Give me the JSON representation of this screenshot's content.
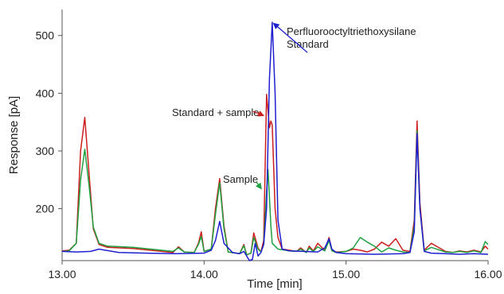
{
  "chart_data": {
    "type": "line",
    "xlabel": "Time [min]",
    "ylabel": "Response [pA]",
    "xlim": [
      13.0,
      16.0
    ],
    "ylim": [
      110,
      545
    ],
    "x_ticks": [
      13.0,
      14.0,
      15.0,
      16.0
    ],
    "x_tick_labels": [
      "13.00",
      "14.00",
      "15.00",
      "16.00"
    ],
    "y_ticks": [
      200,
      300,
      400,
      500
    ],
    "y_tick_labels": [
      "200",
      "300",
      "400",
      "500"
    ],
    "grid": false,
    "legend": "none",
    "annotations": [
      {
        "id": "standard",
        "lines": [
          "Perfluorooctyltriethoxysilane",
          "Standard"
        ],
        "points_to": [
          14.48,
          523
        ],
        "arrow_color": "#1f1fd0"
      },
      {
        "id": "standard-sample",
        "lines": [
          "Standard + sample"
        ],
        "points_to": [
          14.43,
          360
        ],
        "arrow_color": "#cc1f1f"
      },
      {
        "id": "sample",
        "lines": [
          "Sample"
        ],
        "points_to": [
          14.41,
          232
        ],
        "arrow_color": "#20a040"
      }
    ],
    "series": [
      {
        "color": "#cc1f1f",
        "x": [
          13.0,
          13.05,
          13.1,
          13.13,
          13.16,
          13.19,
          13.22,
          13.26,
          13.32,
          13.5,
          13.78,
          13.82,
          13.86,
          13.93,
          13.96,
          13.98,
          14.0,
          14.05,
          14.08,
          14.11,
          14.14,
          14.17,
          14.25,
          14.28,
          14.3,
          14.33,
          14.35,
          14.38,
          14.4,
          14.42,
          14.44,
          14.45,
          14.46,
          14.47,
          14.48,
          14.5,
          14.52,
          14.55,
          14.6,
          14.65,
          14.68,
          14.72,
          14.74,
          14.77,
          14.8,
          14.85,
          14.88,
          14.9,
          14.93,
          15.0,
          15.05,
          15.1,
          15.15,
          15.2,
          15.25,
          15.3,
          15.35,
          15.4,
          15.45,
          15.48,
          15.5,
          15.52,
          15.55,
          15.6,
          15.7,
          15.75,
          15.8,
          15.85,
          15.9,
          15.95,
          15.98,
          16.0
        ],
        "y": [
          127,
          128,
          140,
          300,
          358,
          260,
          165,
          138,
          133,
          131,
          124,
          134,
          125,
          124,
          140,
          160,
          126,
          130,
          200,
          252,
          170,
          125,
          122,
          138,
          120,
          123,
          158,
          132,
          125,
          145,
          398,
          370,
          340,
          352,
          345,
          200,
          150,
          130,
          128,
          126,
          132,
          124,
          135,
          127,
          140,
          128,
          150,
          128,
          125,
          126,
          130,
          128,
          125,
          130,
          142,
          135,
          148,
          128,
          126,
          180,
          352,
          210,
          128,
          140,
          126,
          124,
          127,
          125,
          128,
          125,
          135,
          130
        ]
      },
      {
        "color": "#20a040",
        "x": [
          13.0,
          13.05,
          13.1,
          13.13,
          13.16,
          13.19,
          13.22,
          13.26,
          13.32,
          13.5,
          13.78,
          13.82,
          13.86,
          13.93,
          13.96,
          13.98,
          14.0,
          14.05,
          14.08,
          14.11,
          14.14,
          14.17,
          14.25,
          14.28,
          14.3,
          14.33,
          14.35,
          14.38,
          14.4,
          14.42,
          14.44,
          14.45,
          14.46,
          14.47,
          14.48,
          14.5,
          14.52,
          14.55,
          14.6,
          14.65,
          14.68,
          14.72,
          14.74,
          14.77,
          14.8,
          14.85,
          14.88,
          14.9,
          14.93,
          15.0,
          15.05,
          15.1,
          15.15,
          15.2,
          15.25,
          15.3,
          15.35,
          15.4,
          15.45,
          15.48,
          15.5,
          15.52,
          15.55,
          15.6,
          15.7,
          15.75,
          15.8,
          15.85,
          15.9,
          15.95,
          15.98,
          16.0
        ],
        "y": [
          126,
          127,
          140,
          250,
          303,
          240,
          168,
          140,
          135,
          133,
          126,
          132,
          125,
          124,
          138,
          152,
          126,
          130,
          190,
          245,
          165,
          125,
          122,
          136,
          120,
          123,
          150,
          130,
          125,
          138,
          230,
          268,
          220,
          170,
          140,
          135,
          130,
          129,
          127,
          126,
          130,
          124,
          132,
          126,
          134,
          127,
          145,
          127,
          124,
          126,
          132,
          150,
          142,
          135,
          125,
          132,
          128,
          125,
          124,
          170,
          335,
          200,
          127,
          133,
          125,
          124,
          126,
          124,
          127,
          124,
          143,
          138
        ]
      },
      {
        "color": "#1f1fd0",
        "x": [
          13.0,
          13.1,
          13.2,
          13.26,
          13.4,
          13.6,
          13.8,
          14.0,
          14.05,
          14.08,
          14.11,
          14.14,
          14.2,
          14.25,
          14.28,
          14.3,
          14.32,
          14.34,
          14.36,
          14.38,
          14.4,
          14.42,
          14.44,
          14.46,
          14.48,
          14.5,
          14.52,
          14.55,
          14.6,
          14.7,
          14.8,
          14.85,
          14.88,
          14.9,
          14.93,
          15.0,
          15.2,
          15.4,
          15.45,
          15.48,
          15.5,
          15.52,
          15.55,
          15.6,
          15.7,
          15.8,
          15.9,
          16.0
        ],
        "y": [
          126,
          125,
          126,
          130,
          124,
          123,
          122,
          123,
          128,
          145,
          178,
          140,
          124,
          122,
          126,
          118,
          110,
          112,
          140,
          118,
          124,
          138,
          200,
          425,
          523,
          400,
          180,
          130,
          127,
          126,
          125,
          132,
          148,
          130,
          124,
          122,
          121,
          122,
          124,
          160,
          330,
          200,
          126,
          123,
          122,
          121,
          122,
          121
        ]
      }
    ]
  }
}
